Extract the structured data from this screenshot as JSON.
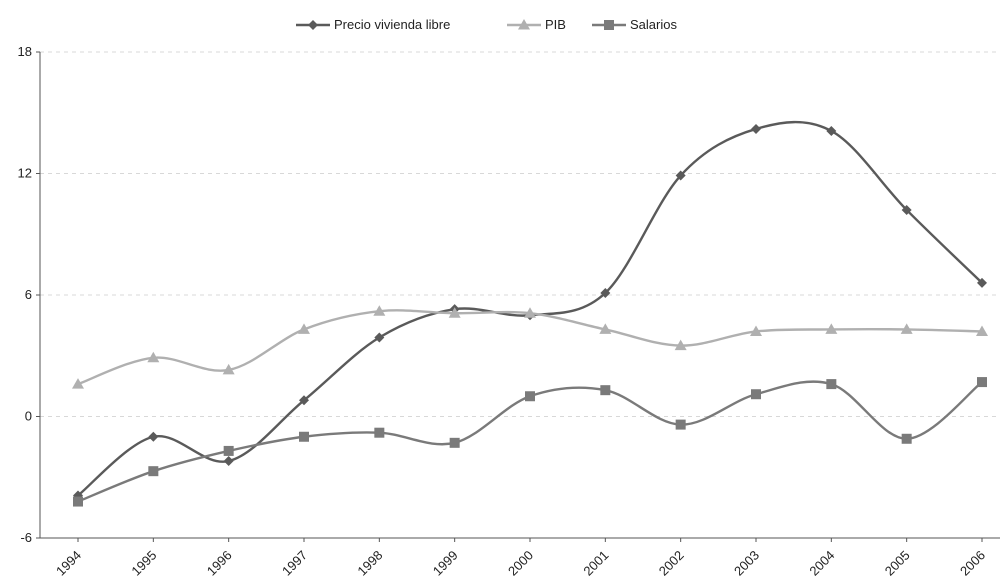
{
  "chart_data": {
    "type": "line",
    "title": "",
    "xlabel": "",
    "ylabel": "",
    "categories": [
      "1994",
      "1995",
      "1996",
      "1997",
      "1998",
      "1999",
      "2000",
      "2001",
      "2002",
      "2003",
      "2004",
      "2005",
      "2006"
    ],
    "ylim": [
      -6,
      18
    ],
    "yticks": [
      -6,
      0,
      6,
      12,
      18
    ],
    "grid": "horizontal-dashed",
    "legend_position": "top-center",
    "smooth": true,
    "series": [
      {
        "name": "Precio vivienda libre",
        "marker": "diamond",
        "color": "#5a5a5a",
        "values": [
          -3.9,
          -1.0,
          -2.2,
          0.8,
          3.9,
          5.3,
          5.0,
          6.1,
          11.9,
          14.2,
          14.1,
          10.2,
          6.6
        ]
      },
      {
        "name": "PIB",
        "marker": "triangle",
        "color": "#b0b0b0",
        "values": [
          1.6,
          2.9,
          2.3,
          4.3,
          5.2,
          5.1,
          5.1,
          4.3,
          3.5,
          4.2,
          4.3,
          4.3,
          4.2
        ]
      },
      {
        "name": "Salarios",
        "marker": "square",
        "color": "#7a7a7a",
        "values": [
          -4.2,
          -2.7,
          -1.7,
          -1.0,
          -0.8,
          -1.3,
          1.0,
          1.3,
          -0.4,
          1.1,
          1.6,
          -1.1,
          1.7
        ]
      }
    ]
  }
}
